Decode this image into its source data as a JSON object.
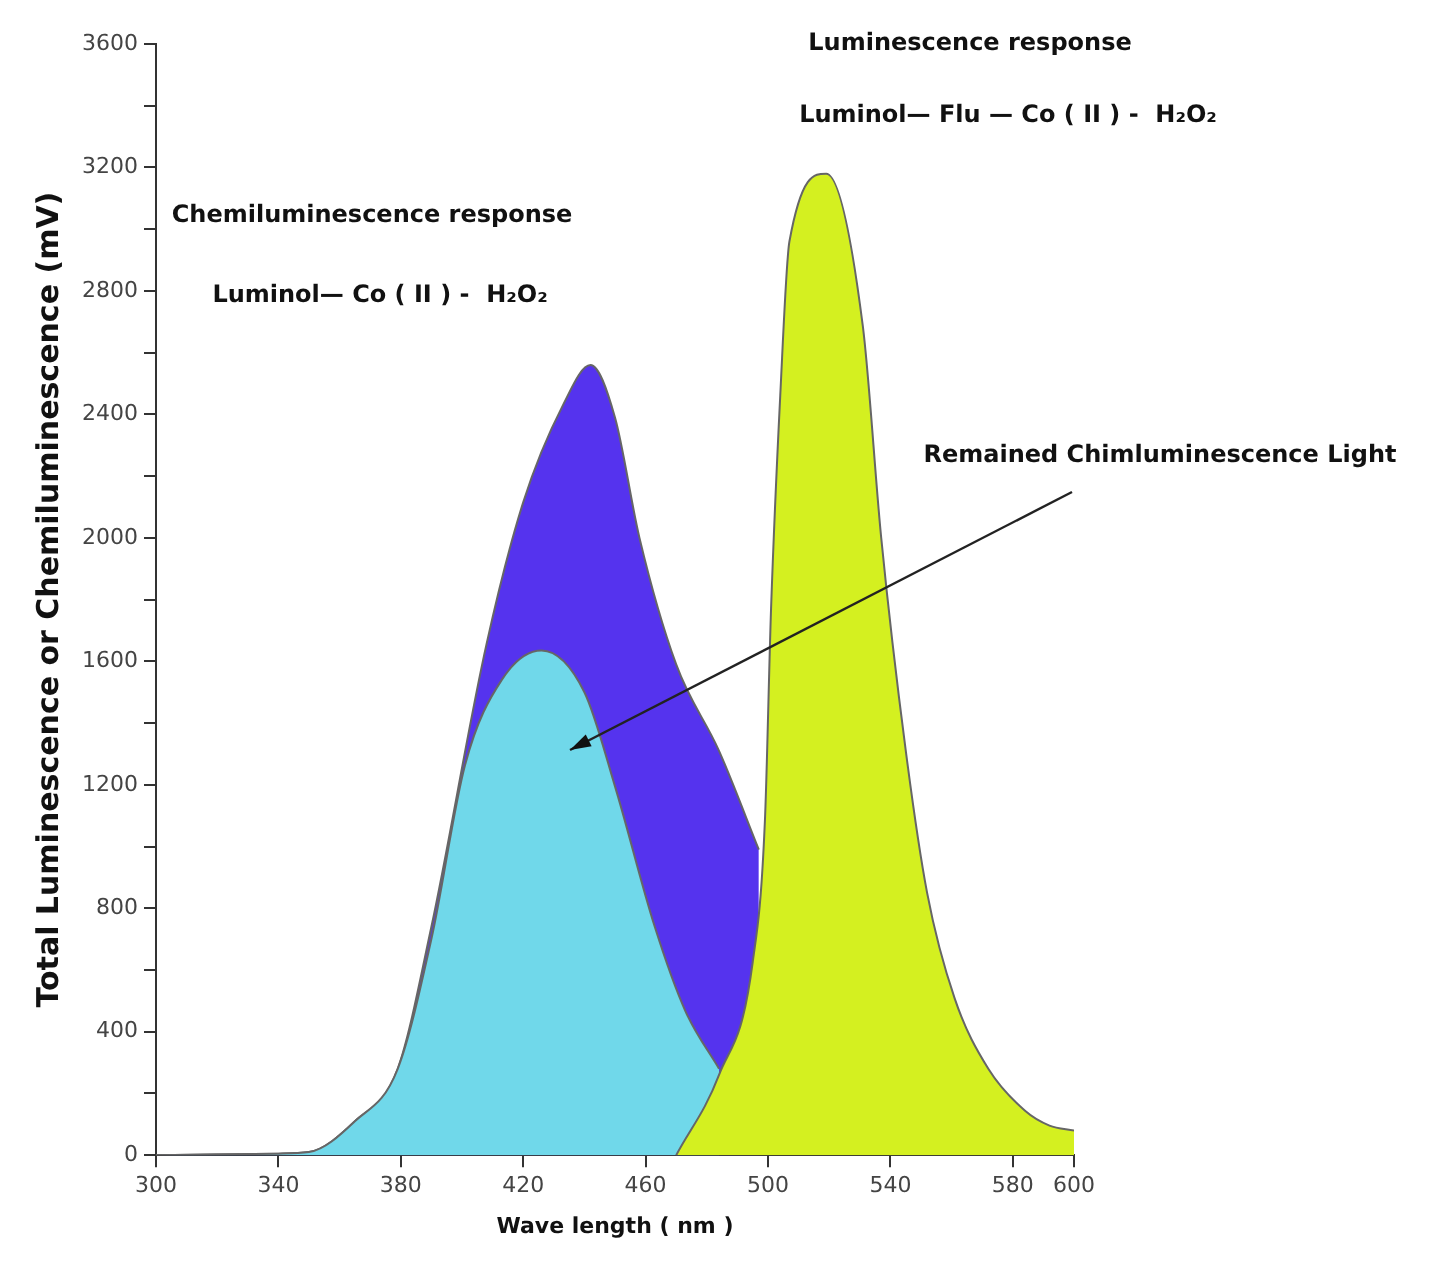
{
  "chart_data": {
    "type": "area",
    "xlabel": "Wave length ( nm )",
    "ylabel": "Total Luminescence or Chemiluminescence (mV)",
    "xlim": [
      300,
      600
    ],
    "xticks": [
      300,
      340,
      380,
      420,
      460,
      500,
      540,
      580,
      600
    ],
    "ylim": [
      0,
      3600
    ],
    "yticks": [
      0,
      {
        "value": 200,
        "label": null
      },
      400,
      {
        "value": 600,
        "label": null
      },
      800,
      {
        "value": 1000,
        "label": null
      },
      1200,
      {
        "value": 1400,
        "label": null
      },
      1600,
      {
        "value": 1800,
        "label": null
      },
      2000,
      {
        "value": 2200,
        "label": null
      },
      2400,
      {
        "value": 2600,
        "label": null
      },
      2800,
      {
        "value": 3000,
        "label": null
      },
      3200,
      {
        "value": 3400,
        "label": null
      },
      3600
    ],
    "grid": false,
    "legend": false,
    "marker": "none",
    "line_style": "solid",
    "series": [
      {
        "color": "#5533ee",
        "x": [
          300,
          340,
          350,
          365,
          379,
          390,
          408,
          420,
          433,
          442,
          450,
          458,
          470,
          484,
          497
        ],
        "values": [
          0,
          5,
          10,
          110,
          280,
          740,
          1655,
          2115,
          2430,
          2560,
          2390,
          2000,
          1590,
          1310,
          990
        ]
      },
      {
        "color": "#70d8ea",
        "x": [
          300,
          340,
          350,
          365,
          379,
          390,
          401,
          413,
          426,
          440,
          450,
          463,
          473,
          484
        ],
        "values": [
          0,
          5,
          10,
          110,
          280,
          700,
          1264,
          1540,
          1635,
          1500,
          1195,
          740,
          467,
          280
        ]
      },
      {
        "color": "#d4f020",
        "x": [
          470,
          484,
          495,
          499,
          501,
          504,
          507,
          519,
          531,
          537,
          545,
          552,
          561,
          572,
          584,
          592,
          600
        ],
        "values": [
          0,
          260,
          625,
          1085,
          1770,
          2460,
          2960,
          3180,
          2685,
          2000,
          1312,
          850,
          508,
          280,
          144,
          96,
          80
        ]
      }
    ],
    "annotations": [
      "Chemiluminescence response",
      "Luminol— Co ( II ) -  H₂O₂",
      "Luminescence response",
      "Luminol— Flu — Co ( II ) -  H₂O₂",
      "Remained Chimluminescence Light"
    ]
  }
}
